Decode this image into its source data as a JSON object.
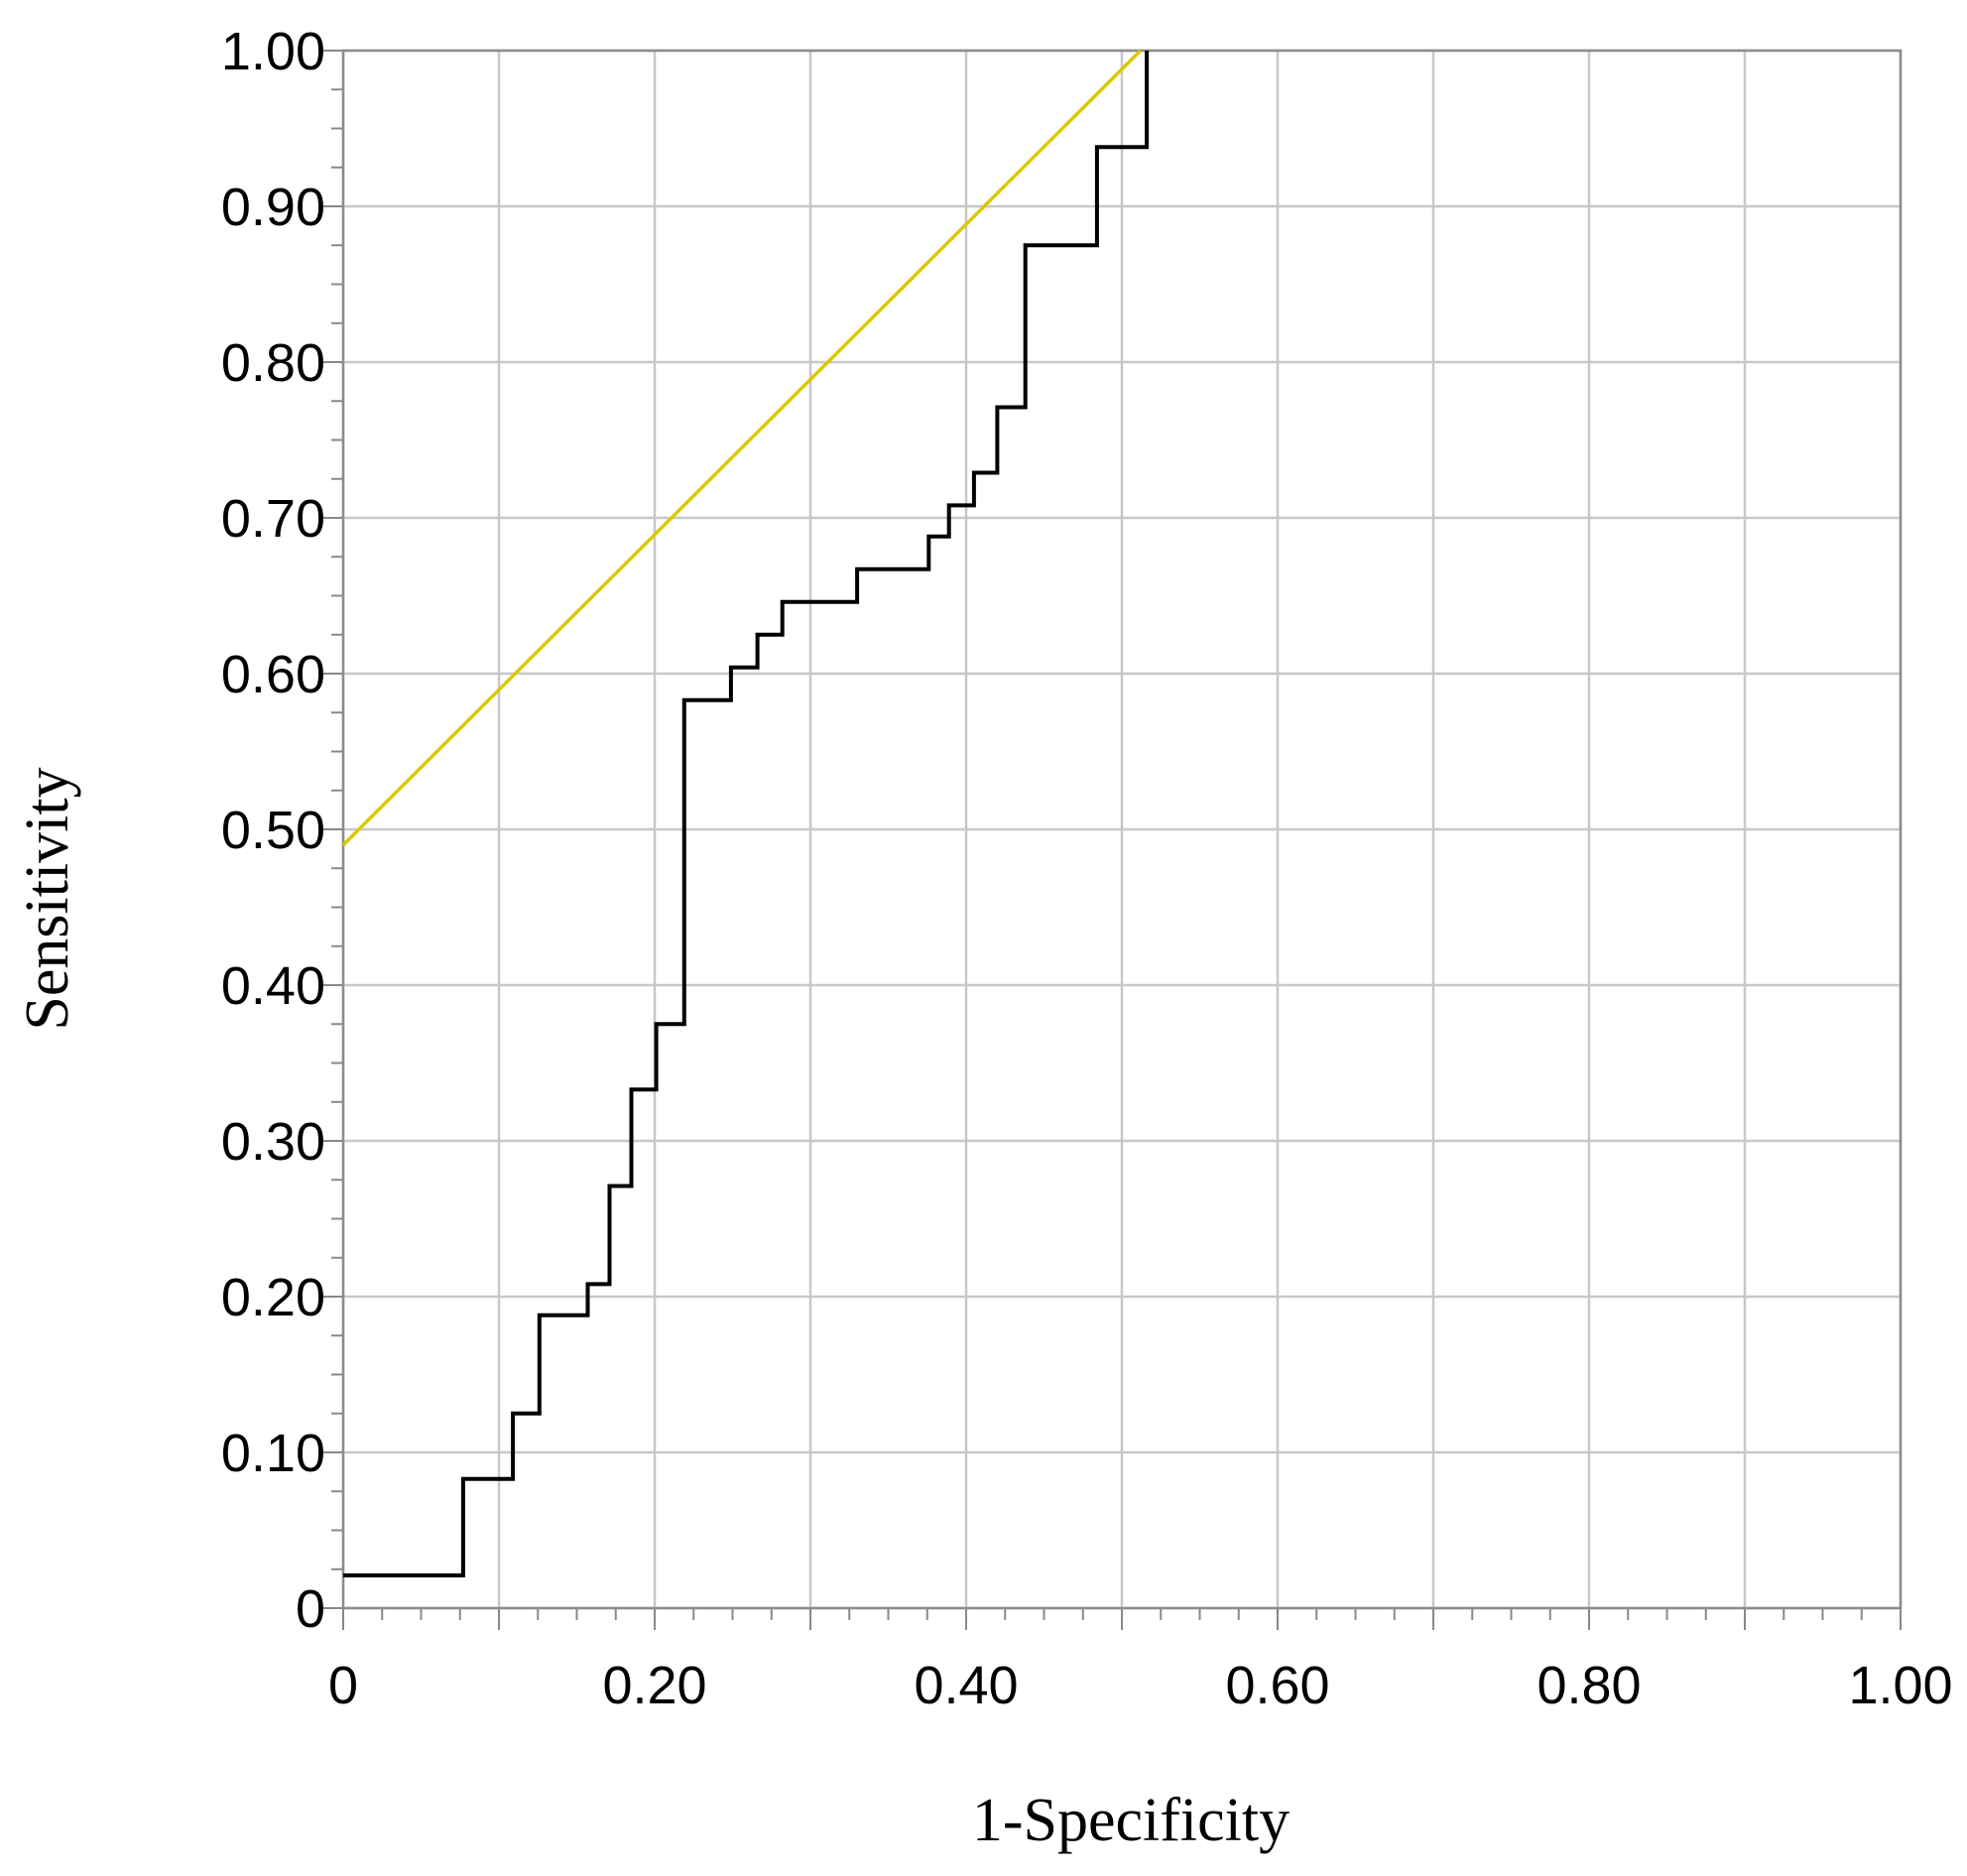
{
  "chart_data": {
    "type": "line",
    "xlabel": "1-Specificity",
    "ylabel": "Sensitivity",
    "xlim": [
      0,
      1
    ],
    "ylim": [
      0,
      1
    ],
    "grid": true,
    "x_ticks": [
      {
        "value": 0,
        "label": "0"
      },
      {
        "value": 0.2,
        "label": "0.20"
      },
      {
        "value": 0.4,
        "label": "0.40"
      },
      {
        "value": 0.6,
        "label": "0.60"
      },
      {
        "value": 0.8,
        "label": "0.80"
      },
      {
        "value": 1.0,
        "label": "1.00"
      }
    ],
    "y_ticks": [
      {
        "value": 0,
        "label": "0"
      },
      {
        "value": 0.1,
        "label": "0.10"
      },
      {
        "value": 0.2,
        "label": "0.20"
      },
      {
        "value": 0.3,
        "label": "0.30"
      },
      {
        "value": 0.4,
        "label": "0.40"
      },
      {
        "value": 0.5,
        "label": "0.50"
      },
      {
        "value": 0.6,
        "label": "0.60"
      },
      {
        "value": 0.7,
        "label": "0.70"
      },
      {
        "value": 0.8,
        "label": "0.80"
      },
      {
        "value": 0.9,
        "label": "0.90"
      },
      {
        "value": 1.0,
        "label": "1.00"
      }
    ],
    "series": [
      {
        "style": "step",
        "color": "#000000",
        "points": [
          [
            0,
            0.021
          ],
          [
            0.077,
            0.021
          ],
          [
            0.077,
            0.083
          ],
          [
            0.109,
            0.083
          ],
          [
            0.109,
            0.125
          ],
          [
            0.126,
            0.125
          ],
          [
            0.126,
            0.188
          ],
          [
            0.157,
            0.188
          ],
          [
            0.157,
            0.208
          ],
          [
            0.171,
            0.208
          ],
          [
            0.171,
            0.271
          ],
          [
            0.185,
            0.271
          ],
          [
            0.185,
            0.333
          ],
          [
            0.201,
            0.333
          ],
          [
            0.201,
            0.375
          ],
          [
            0.219,
            0.375
          ],
          [
            0.219,
            0.583
          ],
          [
            0.249,
            0.583
          ],
          [
            0.249,
            0.604
          ],
          [
            0.266,
            0.604
          ],
          [
            0.266,
            0.625
          ],
          [
            0.282,
            0.625
          ],
          [
            0.282,
            0.646
          ],
          [
            0.33,
            0.646
          ],
          [
            0.33,
            0.667
          ],
          [
            0.376,
            0.667
          ],
          [
            0.376,
            0.688
          ],
          [
            0.389,
            0.688
          ],
          [
            0.389,
            0.708
          ],
          [
            0.405,
            0.708
          ],
          [
            0.405,
            0.729
          ],
          [
            0.42,
            0.729
          ],
          [
            0.42,
            0.771
          ],
          [
            0.438,
            0.771
          ],
          [
            0.438,
            0.875
          ],
          [
            0.484,
            0.875
          ],
          [
            0.484,
            0.938
          ],
          [
            0.516,
            0.938
          ],
          [
            0.516,
            1.0
          ]
        ]
      },
      {
        "style": "line",
        "color": "#dcc800",
        "points": [
          [
            0,
            0.49
          ],
          [
            0.512,
            1.0
          ]
        ]
      }
    ]
  }
}
